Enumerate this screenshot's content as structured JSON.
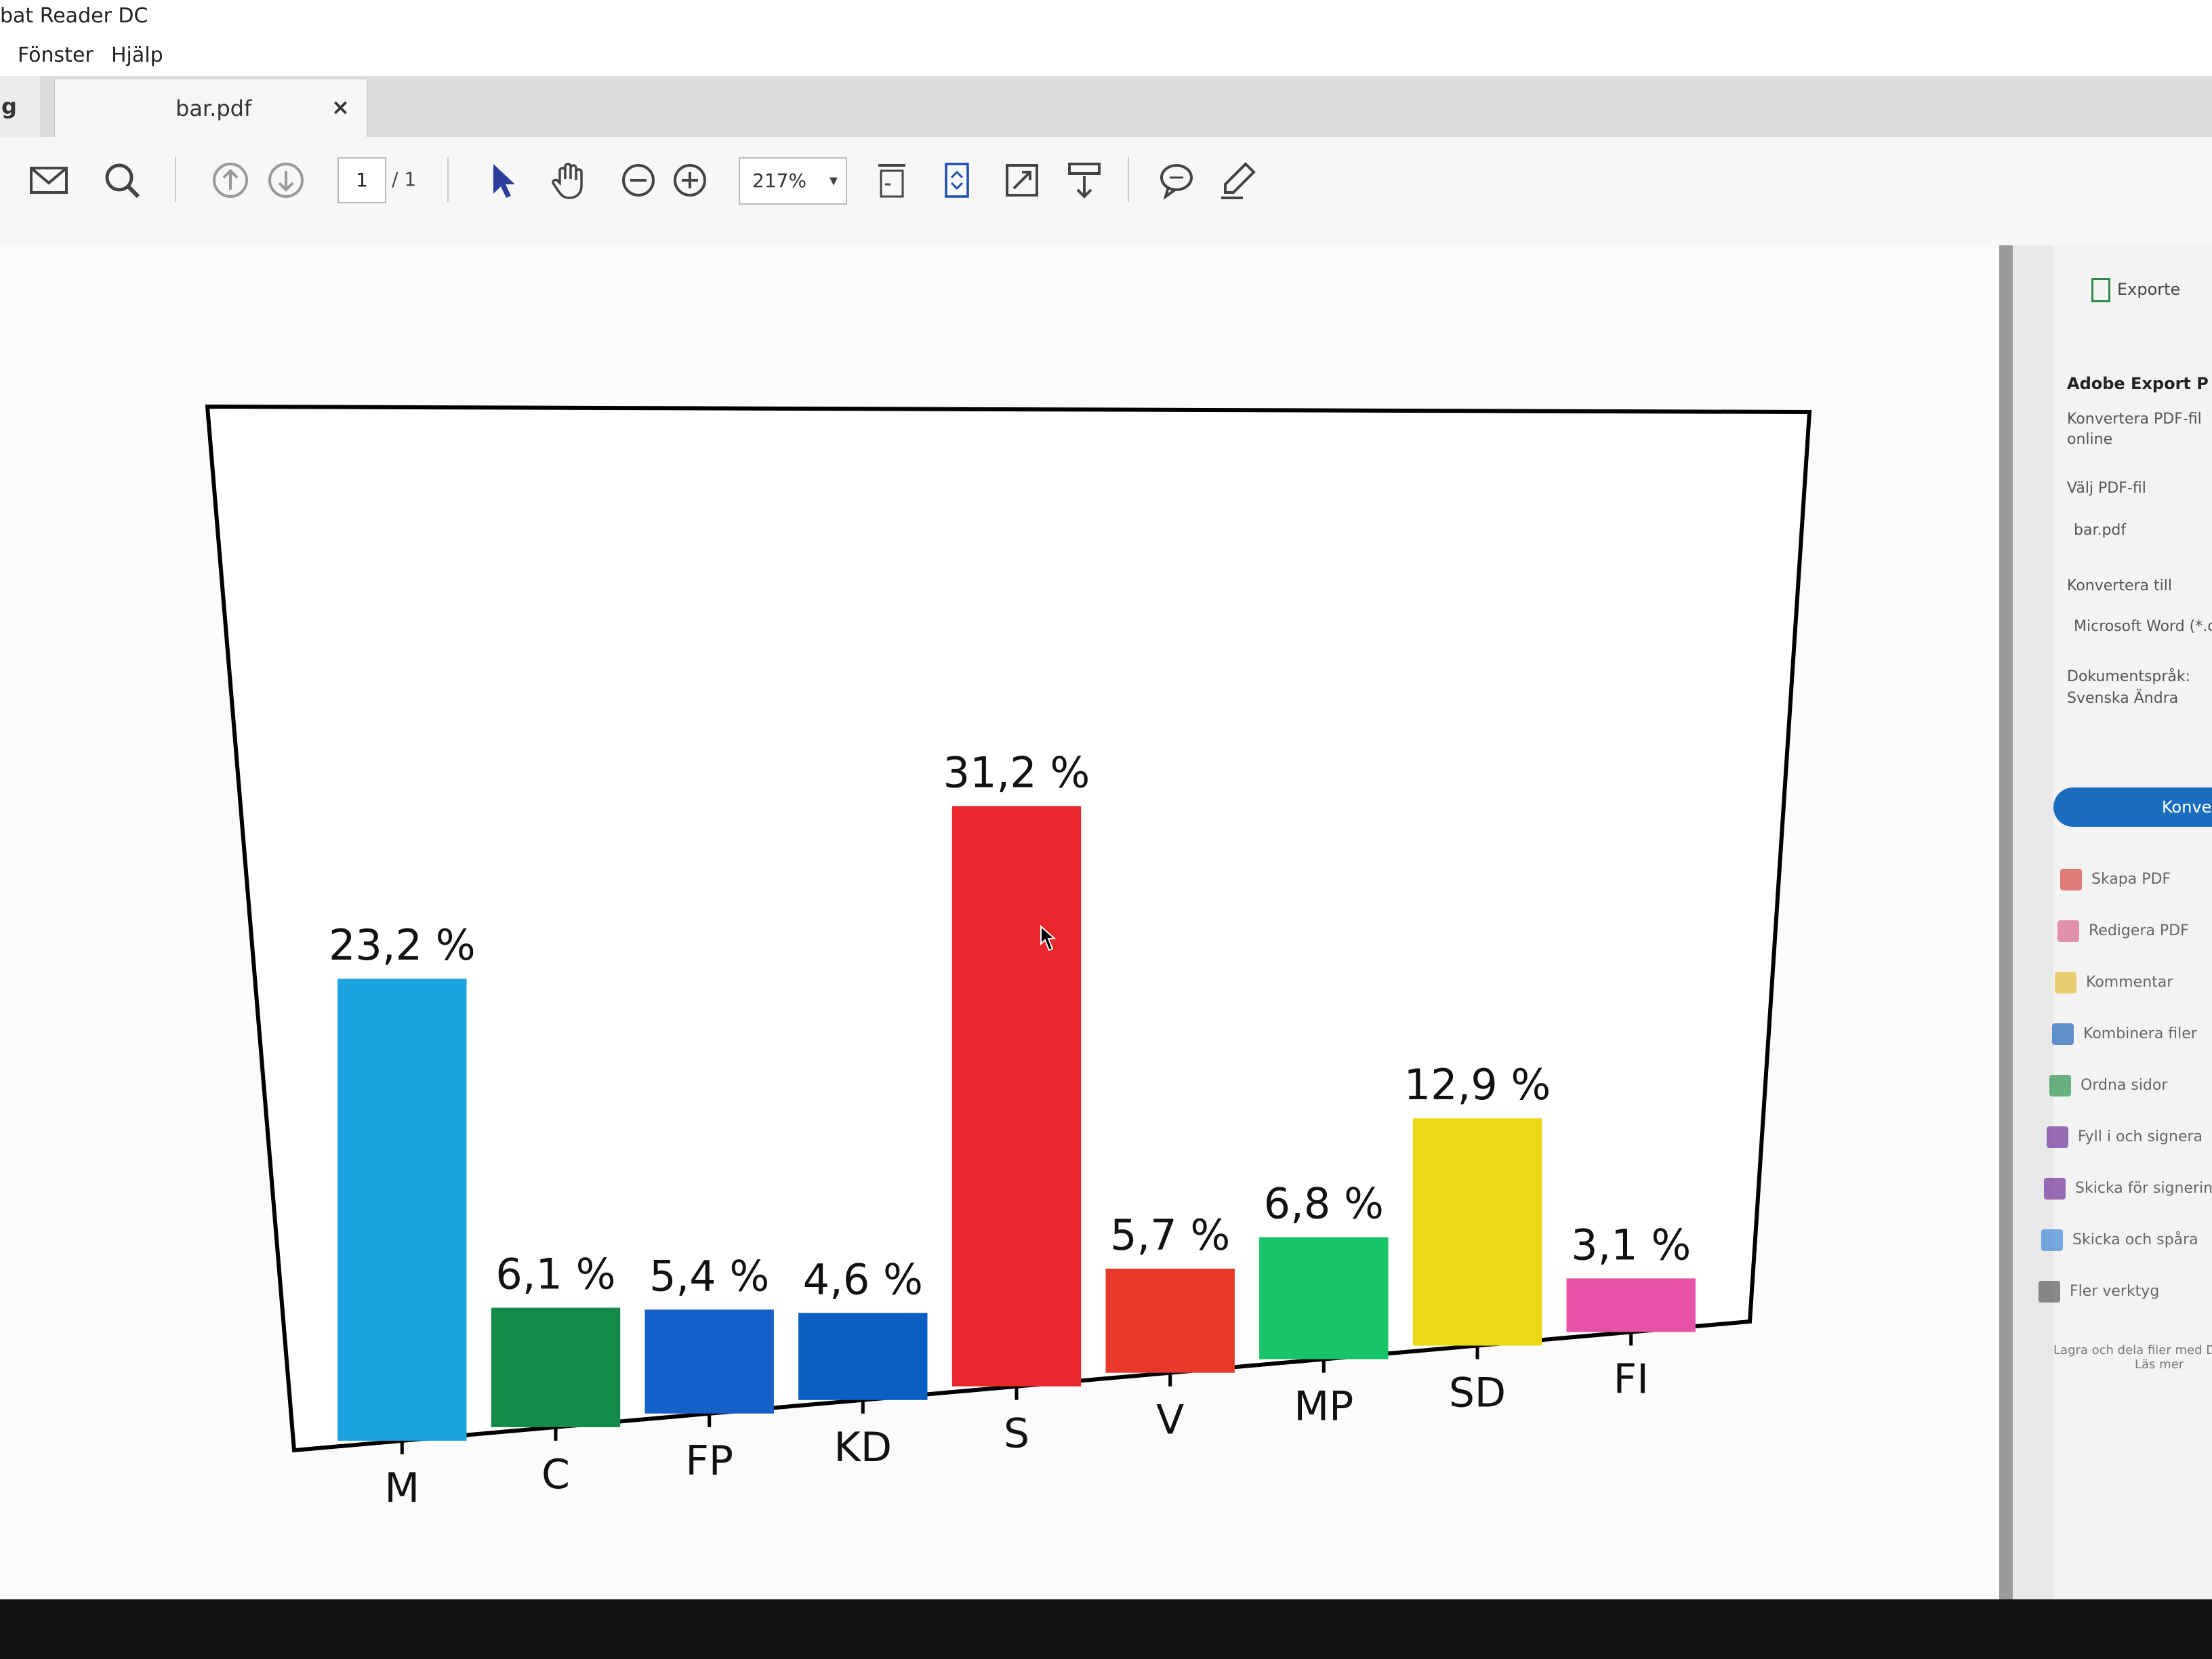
{
  "app": {
    "title": "bat Reader DC"
  },
  "menu": {
    "items": [
      "Fönster",
      "Hjälp"
    ]
  },
  "tabs": {
    "home_stub": "g",
    "doc_tab": "bar.pdf",
    "close": "×"
  },
  "toolbar": {
    "page_current": "1",
    "page_total": "/ 1",
    "zoom": "217%",
    "zoom_caret": "▾"
  },
  "chart_data": {
    "type": "bar",
    "categories": [
      "M",
      "C",
      "FP",
      "KD",
      "S",
      "V",
      "MP",
      "SD",
      "FI"
    ],
    "values": [
      23.2,
      6.1,
      5.4,
      4.6,
      31.2,
      5.7,
      6.8,
      12.9,
      3.1
    ],
    "data_labels": [
      "23,2 %",
      "6,1 %",
      "5,4 %",
      "4,6 %",
      "31,2 %",
      "5,7 %",
      "6,8 %",
      "12,9 %",
      "3,1 %"
    ],
    "colors": [
      "#1aa3dc",
      "#148a4a",
      "#1560c9",
      "#0b5fc2",
      "#e8262b",
      "#e8382a",
      "#18c467",
      "#ecd817",
      "#e552a8"
    ],
    "ylim": [
      0,
      36
    ],
    "grid": false,
    "legend": "none"
  },
  "right_pane": {
    "export_label": "Exporte",
    "section_title": "Adobe Export P",
    "desc_line1": "Konvertera PDF-fil",
    "desc_line2": "online",
    "choose_file": "Välj PDF-fil",
    "file_name": "bar.pdf",
    "convert_to": "Konvertera till",
    "format": "Microsoft Word (*.d",
    "doc_lang": "Dokumentspråk:",
    "lang_value": "Svenska  Ändra",
    "convert_button": "Konver",
    "tools": [
      "Skapa PDF",
      "Redigera PDF",
      "Kommentar",
      "Kombinera filer",
      "Ordna sidor",
      "Fyll i och signera",
      "Skicka för signering",
      "Skicka och spåra",
      "Fler verktyg"
    ],
    "tool_colors": [
      "#d9534f",
      "#d96f8f",
      "#e8c24a",
      "#2d6fbf",
      "#3a9a5a",
      "#7a3fa0",
      "#7a3fa0",
      "#4a8fd8",
      "#666666"
    ],
    "footer_line1": "Lagra och dela filer med Docum",
    "footer_line2": "Läs mer"
  }
}
